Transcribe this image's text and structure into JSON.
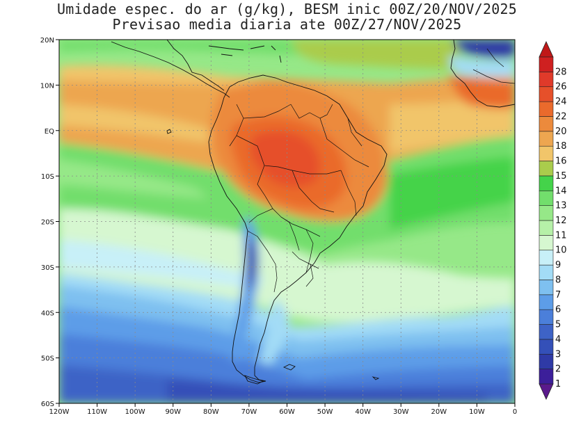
{
  "title": {
    "line1": "Umidade espec. do ar (g/kg), BESM inic 00Z/20/NOV/2025",
    "line2": "Previsao media diaria ate 00Z/27/NOV/2025"
  },
  "map": {
    "lon_range": [
      -120,
      0
    ],
    "lat_range": [
      -60,
      20
    ],
    "lat_ticks": [
      {
        "lat": 20,
        "label": "20N"
      },
      {
        "lat": 10,
        "label": "10N"
      },
      {
        "lat": 0,
        "label": "EQ"
      },
      {
        "lat": -10,
        "label": "10S"
      },
      {
        "lat": -20,
        "label": "20S"
      },
      {
        "lat": -30,
        "label": "30S"
      },
      {
        "lat": -40,
        "label": "40S"
      },
      {
        "lat": -50,
        "label": "50S"
      },
      {
        "lat": -60,
        "label": "60S"
      }
    ],
    "lon_ticks": [
      {
        "lon": -120,
        "label": "120W"
      },
      {
        "lon": -110,
        "label": "110W"
      },
      {
        "lon": -100,
        "label": "100W"
      },
      {
        "lon": -90,
        "label": "90W"
      },
      {
        "lon": -80,
        "label": "80W"
      },
      {
        "lon": -70,
        "label": "70W"
      },
      {
        "lon": -60,
        "label": "60W"
      },
      {
        "lon": -50,
        "label": "50W"
      },
      {
        "lon": -40,
        "label": "40W"
      },
      {
        "lon": -30,
        "label": "30W"
      },
      {
        "lon": -20,
        "label": "20W"
      },
      {
        "lon": -10,
        "label": "10W"
      },
      {
        "lon": 0,
        "label": "0"
      }
    ]
  },
  "colorbar": {
    "levels": [
      {
        "label": "1",
        "color": "#3c1f9a"
      },
      {
        "label": "2",
        "color": "#2f3aa6"
      },
      {
        "label": "3",
        "color": "#3450b8"
      },
      {
        "label": "4",
        "color": "#3e63c6"
      },
      {
        "label": "5",
        "color": "#4b7fda"
      },
      {
        "label": "6",
        "color": "#5d9de8"
      },
      {
        "label": "7",
        "color": "#7ec0f0"
      },
      {
        "label": "8",
        "color": "#a3dcf6"
      },
      {
        "label": "9",
        "color": "#c8f0f8"
      },
      {
        "label": "10",
        "color": "#d6f7d0"
      },
      {
        "label": "11",
        "color": "#b6f1a8"
      },
      {
        "label": "12",
        "color": "#96e888"
      },
      {
        "label": "13",
        "color": "#72de6c"
      },
      {
        "label": "14",
        "color": "#44d34a"
      },
      {
        "label": "15",
        "color": "#aacc4c"
      },
      {
        "label": "16",
        "color": "#f1c56a"
      },
      {
        "label": "18",
        "color": "#eda650"
      },
      {
        "label": "20",
        "color": "#ec8a3c"
      },
      {
        "label": "22",
        "color": "#ea6a2c"
      },
      {
        "label": "24",
        "color": "#e6502a"
      },
      {
        "label": "26",
        "color": "#e03a2a"
      },
      {
        "label": "28",
        "color": "#cf2020"
      }
    ],
    "under_color": "#5a1a8c",
    "over_color": "#c01818"
  }
}
